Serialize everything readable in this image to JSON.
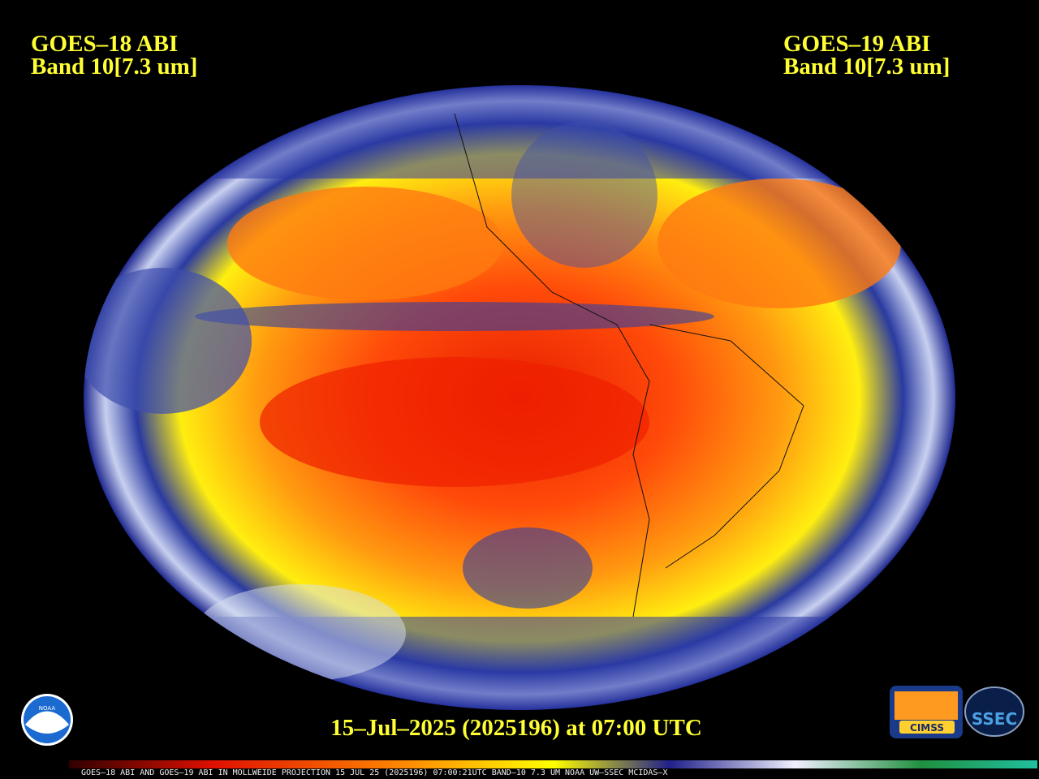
{
  "header": {
    "left": {
      "satellite": "GOES–18 ABI",
      "band": "Band 10[7.3 um]"
    },
    "right": {
      "satellite": "GOES–19 ABI",
      "band": "Band 10[7.3 um]"
    }
  },
  "timestamp": "15–Jul–2025 (2025196) at 07:00 UTC",
  "footer": "GOES–18 ABI AND GOES–19 ABI IN MOLLWEIDE PROJECTION 15 JUL 25 (2025196) 07:00:21UTC BAND–10 7.3 UM NOAA UW–SSEC MCIDAS–X",
  "logos": {
    "noaa": "NOAA",
    "cimss": "CIMSS",
    "ssec": "SSEC"
  }
}
